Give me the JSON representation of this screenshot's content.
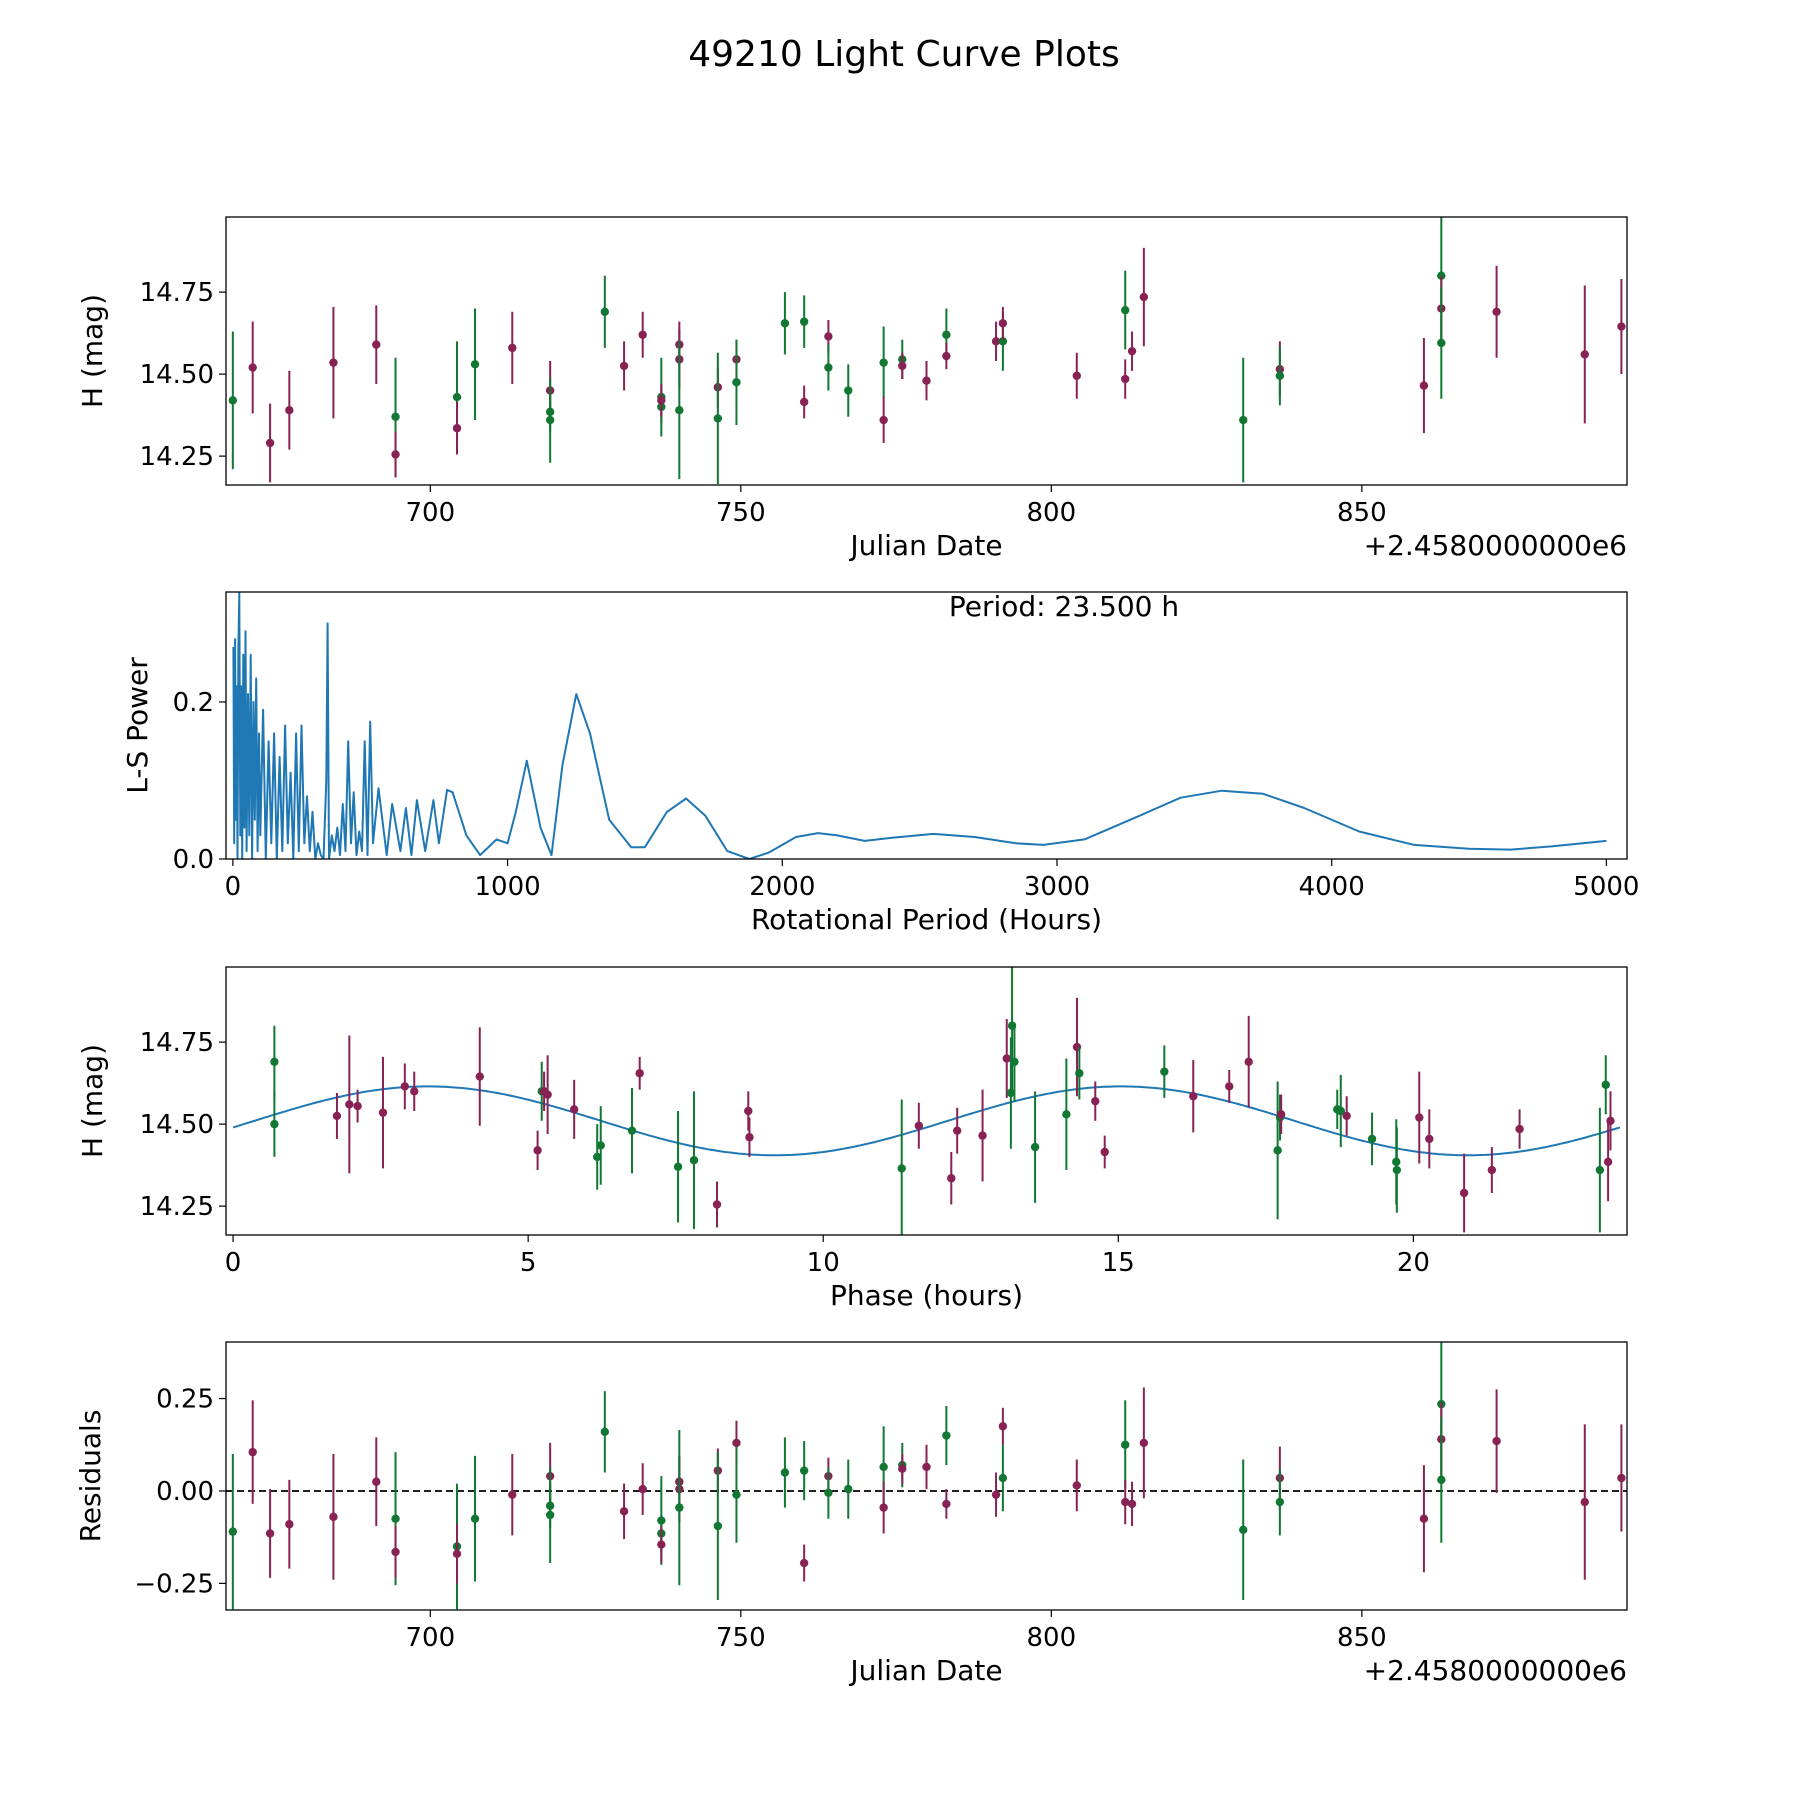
{
  "title": "49210 Light Curve Plots",
  "colors": {
    "wine": "#882255",
    "green": "#117733",
    "periodogram": "#1f77b4",
    "model": "#1f77b4"
  },
  "chart_data": [
    {
      "id": "lightcurve",
      "type": "scatter",
      "xlabel": "Julian Date",
      "ylabel": "H (mag)",
      "offset_text": "+2.4580000000e6",
      "xlim": [
        667.1,
        892.7
      ],
      "ylim": [
        14.162,
        14.979
      ],
      "xticks": [
        700,
        750,
        800,
        850
      ],
      "yticks": [
        14.25,
        14.5,
        14.75
      ],
      "ytick_labels": [
        "14.25",
        "14.50",
        "14.75"
      ]
    },
    {
      "id": "periodogram",
      "type": "line",
      "xlabel": "Rotational Period (Hours)",
      "ylabel": "L-S Power",
      "annotation": "Period: 23.500 h",
      "xlim": [
        -25,
        5075
      ],
      "ylim": [
        0,
        0.34
      ],
      "xticks": [
        0,
        1000,
        2000,
        3000,
        4000,
        5000
      ],
      "yticks": [
        0.0,
        0.2
      ],
      "ytick_labels": [
        "0.0",
        "0.2"
      ],
      "period": [
        2,
        5,
        8,
        11,
        14,
        17,
        20,
        23.5,
        27,
        30,
        34,
        38,
        42,
        46,
        50,
        55,
        60,
        65,
        70,
        75,
        80,
        85,
        90,
        95,
        100,
        110,
        120,
        130,
        140,
        150,
        160,
        170,
        180,
        190,
        200,
        210,
        220,
        230,
        240,
        250,
        260,
        270,
        280,
        290,
        300,
        310,
        320,
        330,
        340,
        345,
        350,
        360,
        370,
        380,
        390,
        400,
        410,
        420,
        430,
        440,
        450,
        460,
        470,
        480,
        490,
        500,
        510,
        530,
        560,
        580,
        610,
        630,
        650,
        670,
        700,
        730,
        750,
        780,
        800,
        850,
        900,
        960,
        1000,
        1030,
        1070,
        1120,
        1160,
        1200,
        1250,
        1300,
        1370,
        1450,
        1500,
        1580,
        1650,
        1720,
        1800,
        1880,
        1950,
        2050,
        2130,
        2200,
        2300,
        2400,
        2550,
        2700,
        2850,
        2950,
        3100,
        3300,
        3450,
        3600,
        3750,
        3900,
        4100,
        4300,
        4500,
        4650,
        4800,
        5000
      ],
      "power": [
        0.27,
        0.02,
        0.28,
        0.05,
        0.22,
        0.0,
        0.27,
        0.34,
        0.03,
        0.22,
        0.0,
        0.26,
        0.04,
        0.29,
        0.01,
        0.21,
        0.03,
        0.26,
        0.0,
        0.2,
        0.05,
        0.23,
        0.01,
        0.16,
        0.03,
        0.19,
        0.0,
        0.15,
        0.02,
        0.16,
        0.0,
        0.13,
        0.01,
        0.17,
        0.02,
        0.11,
        0.0,
        0.16,
        0.01,
        0.17,
        0.02,
        0.08,
        0.01,
        0.06,
        0.0,
        0.02,
        0.005,
        0.0,
        0.1,
        0.3,
        0.0,
        0.03,
        0.01,
        0.04,
        0.005,
        0.07,
        0.01,
        0.15,
        0.02,
        0.085,
        0.005,
        0.035,
        0.01,
        0.15,
        0.005,
        0.175,
        0.02,
        0.09,
        0.005,
        0.07,
        0.01,
        0.065,
        0.005,
        0.075,
        0.01,
        0.075,
        0.02,
        0.088,
        0.085,
        0.03,
        0.005,
        0.025,
        0.02,
        0.06,
        0.125,
        0.04,
        0.005,
        0.12,
        0.21,
        0.16,
        0.05,
        0.015,
        0.015,
        0.06,
        0.077,
        0.055,
        0.01,
        0.0,
        0.008,
        0.028,
        0.033,
        0.03,
        0.023,
        0.027,
        0.032,
        0.028,
        0.02,
        0.018,
        0.025,
        0.055,
        0.078,
        0.087,
        0.083,
        0.065,
        0.035,
        0.018,
        0.013,
        0.012,
        0.016,
        0.023
      ]
    },
    {
      "id": "phased",
      "type": "scatter",
      "xlabel": "Phase (hours)",
      "ylabel": "H (mag)",
      "xlim": [
        -0.12,
        23.62
      ],
      "ylim": [
        14.162,
        14.979
      ],
      "xticks": [
        0,
        5,
        10,
        15,
        20
      ],
      "yticks": [
        14.25,
        14.5,
        14.75
      ],
      "ytick_labels": [
        "14.25",
        "14.50",
        "14.75"
      ],
      "model": {
        "mean": 14.51,
        "amplitude": 0.105,
        "phase_zero": 0.36,
        "half_period": 11.75,
        "period_hours": 23.5
      },
      "points": [
        [
          0.7,
          14.69,
          0.11,
          1
        ],
        [
          0.7,
          14.5,
          0.1,
          1
        ],
        [
          1.76,
          14.525,
          0.07,
          0
        ],
        [
          1.97,
          14.56,
          0.21,
          0
        ],
        [
          2.11,
          14.555,
          0.05,
          0
        ],
        [
          2.54,
          14.535,
          0.17,
          0
        ],
        [
          2.91,
          14.615,
          0.07,
          0
        ],
        [
          3.07,
          14.6,
          0.06,
          0
        ],
        [
          4.18,
          14.645,
          0.15,
          0
        ],
        [
          5.16,
          14.42,
          0.06,
          0
        ],
        [
          5.23,
          14.6,
          0.09,
          1
        ],
        [
          5.27,
          14.6,
          0.06,
          0
        ],
        [
          5.33,
          14.59,
          0.12,
          0
        ],
        [
          5.78,
          14.545,
          0.09,
          0
        ],
        [
          6.17,
          14.4,
          0.1,
          1
        ],
        [
          6.23,
          14.435,
          0.12,
          1
        ],
        [
          6.76,
          14.48,
          0.13,
          1
        ],
        [
          6.89,
          14.655,
          0.05,
          0
        ],
        [
          7.54,
          14.37,
          0.17,
          1
        ],
        [
          7.81,
          14.39,
          0.21,
          1
        ],
        [
          8.2,
          14.255,
          0.07,
          0
        ],
        [
          8.73,
          14.54,
          0.06,
          0
        ],
        [
          8.75,
          14.46,
          0.06,
          0
        ],
        [
          11.33,
          14.365,
          0.21,
          1
        ],
        [
          11.62,
          14.495,
          0.07,
          0
        ],
        [
          12.17,
          14.335,
          0.08,
          0
        ],
        [
          12.27,
          14.48,
          0.07,
          0
        ],
        [
          12.7,
          14.465,
          0.14,
          0
        ],
        [
          13.11,
          14.7,
          0.12,
          0
        ],
        [
          13.18,
          14.595,
          0.17,
          1
        ],
        [
          13.2,
          14.8,
          0.2,
          1
        ],
        [
          13.24,
          14.69,
          0.12,
          1
        ],
        [
          13.59,
          14.43,
          0.17,
          1
        ],
        [
          14.12,
          14.53,
          0.17,
          1
        ],
        [
          14.3,
          14.735,
          0.15,
          0
        ],
        [
          14.34,
          14.655,
          0.08,
          1
        ],
        [
          14.61,
          14.57,
          0.06,
          0
        ],
        [
          14.77,
          14.415,
          0.05,
          0
        ],
        [
          15.78,
          14.66,
          0.08,
          1
        ],
        [
          16.27,
          14.585,
          0.11,
          0
        ],
        [
          16.88,
          14.615,
          0.05,
          0
        ],
        [
          17.21,
          14.69,
          0.14,
          0
        ],
        [
          17.7,
          14.42,
          0.21,
          1
        ],
        [
          17.74,
          14.52,
          0.07,
          1
        ],
        [
          17.76,
          14.53,
          0.06,
          0
        ],
        [
          18.71,
          14.545,
          0.06,
          1
        ],
        [
          18.77,
          14.54,
          0.11,
          1
        ],
        [
          18.87,
          14.525,
          0.06,
          0
        ],
        [
          19.3,
          14.455,
          0.08,
          1
        ],
        [
          19.71,
          14.385,
          0.13,
          1
        ],
        [
          19.72,
          14.36,
          0.13,
          1
        ],
        [
          20.1,
          14.52,
          0.14,
          0
        ],
        [
          20.27,
          14.455,
          0.09,
          0
        ],
        [
          20.86,
          14.29,
          0.12,
          0
        ],
        [
          21.33,
          14.36,
          0.07,
          0
        ],
        [
          21.8,
          14.485,
          0.06,
          0
        ],
        [
          23.16,
          14.36,
          0.19,
          1
        ],
        [
          23.26,
          14.62,
          0.09,
          1
        ],
        [
          23.3,
          14.385,
          0.12,
          0
        ],
        [
          23.34,
          14.51,
          0.09,
          0
        ]
      ]
    },
    {
      "id": "residuals",
      "type": "scatter",
      "xlabel": "Julian Date",
      "ylabel": "Residuals",
      "offset_text": "+2.4580000000e6",
      "xlim": [
        667.1,
        892.7
      ],
      "ylim": [
        -0.322,
        0.403
      ],
      "xticks": [
        700,
        750,
        800,
        850
      ],
      "yticks": [
        -0.25,
        0.0,
        0.25
      ],
      "ytick_labels": [
        "−0.25",
        "0.00",
        "0.25"
      ]
    }
  ],
  "observations": [
    [
      668.2,
      14.42,
      0.21,
      -0.11,
      1
    ],
    [
      671.4,
      14.52,
      0.14,
      0.105,
      0
    ],
    [
      674.2,
      14.29,
      0.12,
      -0.115,
      0
    ],
    [
      677.3,
      14.39,
      0.12,
      -0.09,
      0
    ],
    [
      684.4,
      14.535,
      0.17,
      -0.07,
      0
    ],
    [
      691.3,
      14.59,
      0.12,
      0.025,
      0
    ],
    [
      694.4,
      14.37,
      0.18,
      -0.075,
      1
    ],
    [
      694.4,
      14.255,
      0.07,
      -0.165,
      0
    ],
    [
      704.3,
      14.43,
      0.17,
      -0.15,
      1
    ],
    [
      704.3,
      14.335,
      0.08,
      -0.17,
      0
    ],
    [
      707.2,
      14.53,
      0.17,
      -0.075,
      1
    ],
    [
      713.2,
      14.58,
      0.11,
      -0.01,
      0
    ],
    [
      719.3,
      14.45,
      0.09,
      0.04,
      0
    ],
    [
      719.3,
      14.385,
      0.06,
      -0.04,
      1
    ],
    [
      719.3,
      14.36,
      0.13,
      -0.065,
      1
    ],
    [
      728.1,
      14.69,
      0.11,
      0.16,
      1
    ],
    [
      731.2,
      14.525,
      0.075,
      -0.055,
      0
    ],
    [
      734.2,
      14.62,
      0.07,
      0.005,
      0
    ],
    [
      737.2,
      14.43,
      0.12,
      -0.08,
      1
    ],
    [
      737.2,
      14.4,
      0.05,
      -0.115,
      1
    ],
    [
      737.2,
      14.42,
      0.05,
      -0.145,
      0
    ],
    [
      740.1,
      14.59,
      0.07,
      0.025,
      0
    ],
    [
      740.1,
      14.545,
      0.09,
      0.005,
      0
    ],
    [
      740.1,
      14.39,
      0.21,
      -0.045,
      1
    ],
    [
      746.3,
      14.46,
      0.06,
      0.055,
      0
    ],
    [
      746.3,
      14.365,
      0.2,
      -0.095,
      1
    ],
    [
      749.3,
      14.545,
      0.06,
      0.13,
      0
    ],
    [
      749.3,
      14.475,
      0.13,
      -0.01,
      1
    ],
    [
      757.1,
      14.655,
      0.095,
      0.05,
      1
    ],
    [
      760.2,
      14.66,
      0.08,
      0.055,
      1
    ],
    [
      760.2,
      14.415,
      0.05,
      -0.195,
      0
    ],
    [
      764.1,
      14.615,
      0.05,
      0.04,
      0
    ],
    [
      764.1,
      14.52,
      0.07,
      -0.005,
      1
    ],
    [
      767.3,
      14.45,
      0.08,
      0.005,
      1
    ],
    [
      773.0,
      14.535,
      0.11,
      0.065,
      1
    ],
    [
      773.0,
      14.36,
      0.07,
      -0.045,
      0
    ],
    [
      776.0,
      14.545,
      0.06,
      0.07,
      1
    ],
    [
      776.0,
      14.525,
      0.04,
      0.06,
      0
    ],
    [
      779.9,
      14.48,
      0.06,
      0.065,
      0
    ],
    [
      783.1,
      14.62,
      0.08,
      0.15,
      1
    ],
    [
      783.1,
      14.555,
      0.04,
      -0.035,
      0
    ],
    [
      791.1,
      14.6,
      0.06,
      -0.01,
      0
    ],
    [
      792.2,
      14.6,
      0.09,
      0.035,
      1
    ],
    [
      792.2,
      14.655,
      0.05,
      0.175,
      0
    ],
    [
      804.1,
      14.495,
      0.07,
      0.015,
      0
    ],
    [
      811.9,
      14.695,
      0.12,
      0.125,
      1
    ],
    [
      811.9,
      14.485,
      0.06,
      -0.03,
      0
    ],
    [
      813.0,
      14.57,
      0.06,
      -0.035,
      0
    ],
    [
      814.9,
      14.735,
      0.15,
      0.13,
      0
    ],
    [
      830.9,
      14.36,
      0.19,
      -0.105,
      1
    ],
    [
      836.8,
      14.515,
      0.085,
      0.035,
      0
    ],
    [
      836.8,
      14.495,
      0.09,
      -0.03,
      1
    ],
    [
      860.0,
      14.465,
      0.145,
      -0.075,
      0
    ],
    [
      862.8,
      14.8,
      0.2,
      0.235,
      1
    ],
    [
      862.8,
      14.7,
      0.1,
      0.14,
      0
    ],
    [
      862.8,
      14.595,
      0.17,
      0.03,
      1
    ],
    [
      871.7,
      14.69,
      0.14,
      0.135,
      0
    ],
    [
      885.9,
      14.56,
      0.21,
      -0.03,
      0
    ],
    [
      891.8,
      14.645,
      0.145,
      0.035,
      0
    ]
  ]
}
